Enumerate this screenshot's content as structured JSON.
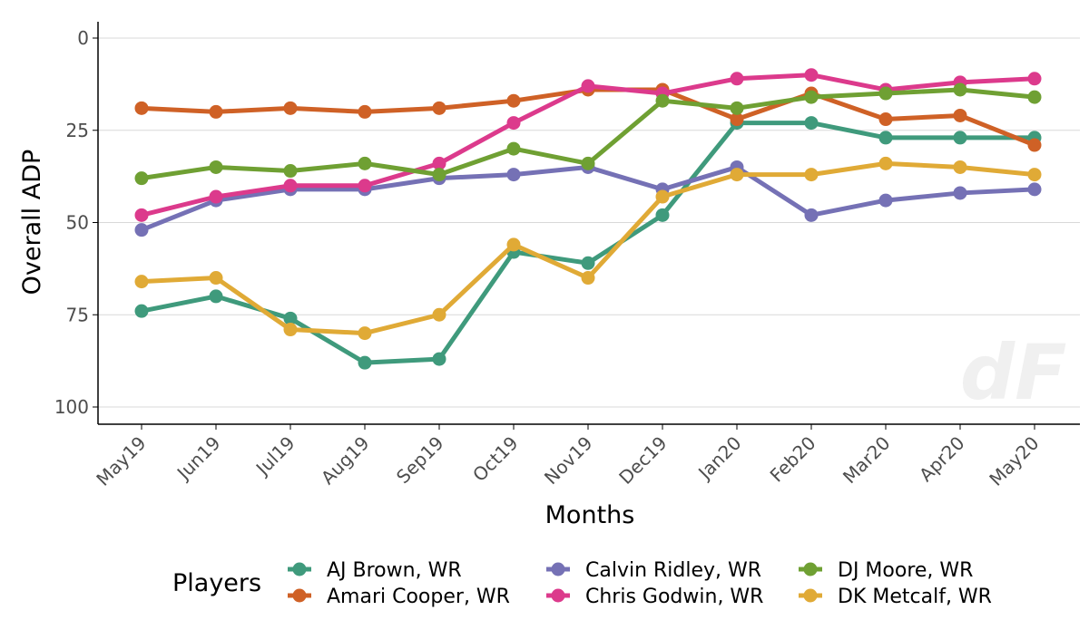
{
  "watermark": "dF",
  "chart_data": {
    "type": "line",
    "title": "",
    "xlabel": "Months",
    "ylabel": "Overall ADP",
    "ylim": [
      0,
      100
    ],
    "y_reversed": true,
    "y_ticks": [
      0,
      25,
      50,
      75,
      100
    ],
    "grid": "horizontal-major",
    "categories": [
      "May19",
      "Jun19",
      "Jul19",
      "Aug19",
      "Sep19",
      "Oct19",
      "Nov19",
      "Dec19",
      "Jan20",
      "Feb20",
      "Mar20",
      "Apr20",
      "May20"
    ],
    "legend": {
      "title": "Players",
      "position": "bottom"
    },
    "series": [
      {
        "name": "AJ Brown, WR",
        "color": "#3f9a7c",
        "values": [
          74,
          70,
          76,
          88,
          87,
          58,
          61,
          48,
          23,
          23,
          27,
          27,
          27
        ]
      },
      {
        "name": "Amari Cooper, WR",
        "color": "#cf6126",
        "values": [
          19,
          20,
          19,
          20,
          19,
          17,
          14,
          14,
          22,
          15,
          22,
          21,
          29
        ]
      },
      {
        "name": "Calvin Ridley, WR",
        "color": "#7571b5",
        "values": [
          52,
          44,
          41,
          41,
          38,
          37,
          35,
          41,
          35,
          48,
          44,
          42,
          41
        ]
      },
      {
        "name": "Chris Godwin, WR",
        "color": "#dc3a8c",
        "values": [
          48,
          43,
          40,
          40,
          34,
          23,
          13,
          15,
          11,
          10,
          14,
          12,
          11
        ]
      },
      {
        "name": "DJ Moore, WR",
        "color": "#6fa033",
        "values": [
          38,
          35,
          36,
          34,
          37,
          30,
          34,
          17,
          19,
          16,
          15,
          14,
          16
        ]
      },
      {
        "name": "DK Metcalf, WR",
        "color": "#e0aa36",
        "values": [
          66,
          65,
          79,
          80,
          75,
          56,
          65,
          43,
          37,
          37,
          34,
          35,
          37
        ]
      }
    ]
  }
}
